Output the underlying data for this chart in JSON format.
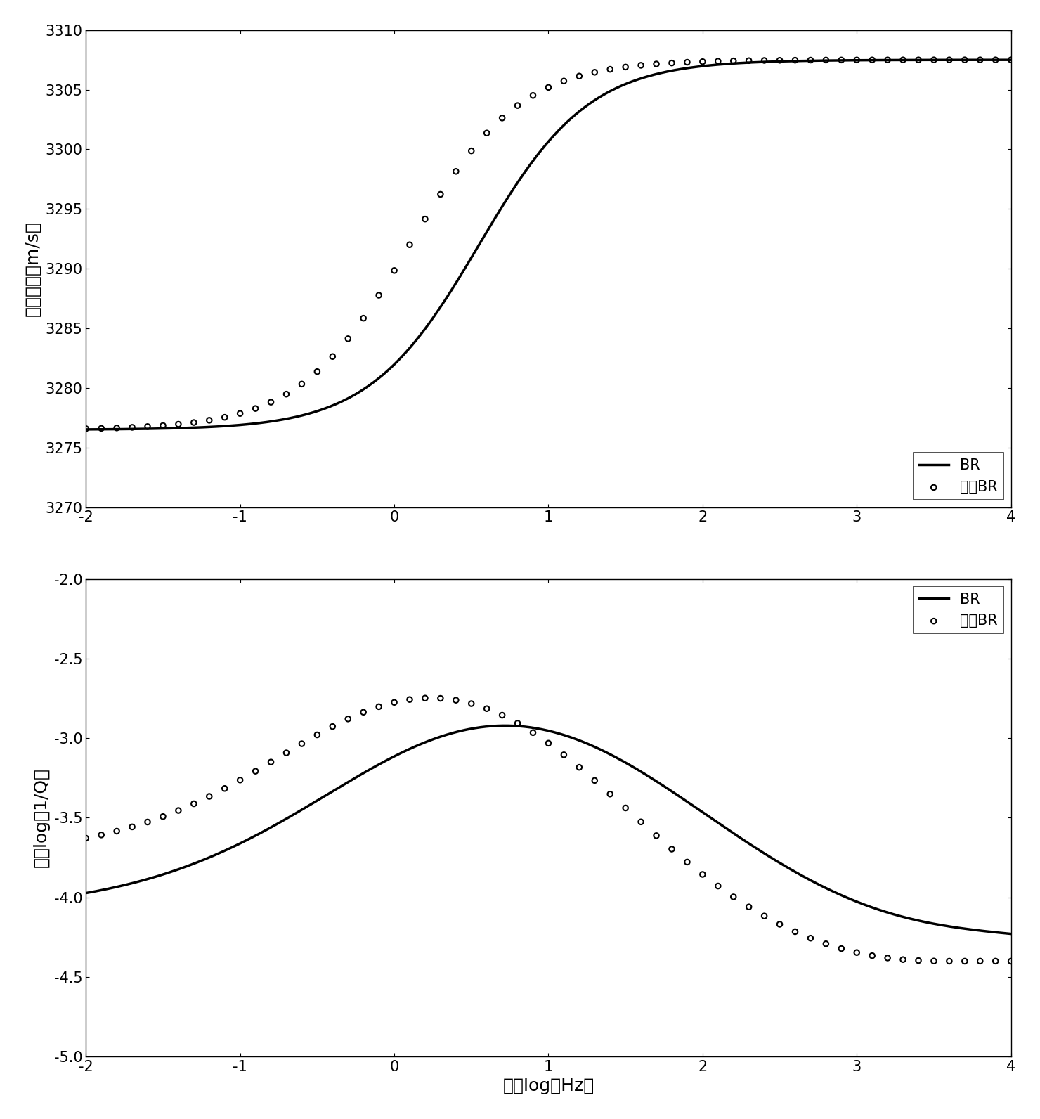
{
  "fig_width": 14.8,
  "fig_height": 15.92,
  "dpi": 100,
  "background_color": "#ffffff",
  "top_plot": {
    "ylabel": "纵波速度（m/s）",
    "ylim": [
      3270,
      3310
    ],
    "yticks": [
      3270,
      3275,
      3280,
      3285,
      3290,
      3295,
      3300,
      3305,
      3310
    ],
    "xlim": [
      -2,
      4
    ],
    "xticks": [
      -2,
      -1,
      0,
      1,
      2,
      3,
      4
    ],
    "v_low": 3276.5,
    "v_high": 3307.5,
    "br_x0": 0.55,
    "br_k": 2.8,
    "ibr_x0": 0.1,
    "ibr_k": 2.8,
    "legend_loc": "lower right",
    "legend_labels": [
      "BR",
      "改进BR"
    ]
  },
  "bottom_plot": {
    "ylabel": "衰减logＨ1/Q）",
    "ylim": [
      -5,
      -2
    ],
    "yticks": [
      -5,
      -4.5,
      -4,
      -3.5,
      -3,
      -2.5,
      -2
    ],
    "xlabel": "频率log（Hz）",
    "xlim": [
      -2,
      4
    ],
    "xticks": [
      -2,
      -1,
      0,
      1,
      2,
      3,
      4
    ],
    "legend_loc": "upper right",
    "legend_labels": [
      "BR",
      "改进BR"
    ]
  },
  "line_color": "#000000",
  "line_width": 2.5,
  "marker_size": 8,
  "marker_linewidth": 1.5,
  "font_size": 18,
  "tick_font_size": 15,
  "legend_font_size": 15
}
